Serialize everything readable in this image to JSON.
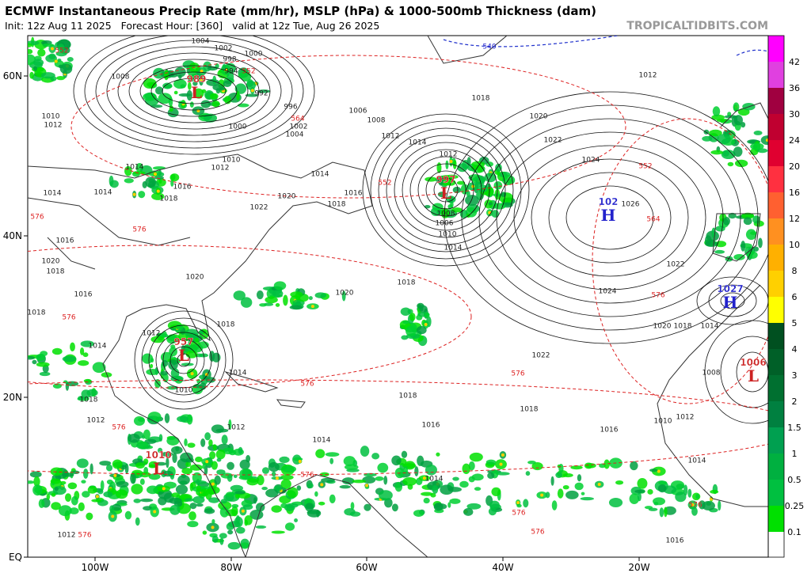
{
  "header": {
    "title": "ECMWF Instantaneous Precip Rate (mm/hr), MSLP (hPa) & 1000-500mb Thickness (dam)",
    "subtitle": "Init: 12z Aug 11 2025   Forecast Hour: [360]   valid at 12z Tue, Aug 26 2025",
    "site": "TROPICALTIDBITS.COM"
  },
  "axes": {
    "lat": [
      "60N",
      "40N",
      "20N",
      "EQ"
    ],
    "lon": [
      "100W",
      "80W",
      "60W",
      "40W",
      "20W"
    ]
  },
  "colorbar": {
    "labels": [
      "42",
      "36",
      "30",
      "24",
      "20",
      "16",
      "12",
      "10",
      "8",
      "6",
      "5",
      "4",
      "3",
      "2",
      "1.5",
      "1",
      "0.5",
      "0.25",
      "0.1"
    ]
  },
  "centers": [
    {
      "pressure": "989",
      "symbol": "L"
    },
    {
      "pressure": "997",
      "symbol": "L"
    },
    {
      "pressure": "102",
      "symbol": "H"
    },
    {
      "pressure": "1027",
      "symbol": "H"
    },
    {
      "pressure": "1006",
      "symbol": "L"
    },
    {
      "pressure": "957",
      "symbol": "L"
    },
    {
      "pressure": "1010",
      "symbol": "L"
    }
  ],
  "isobar_labels": [
    "1004",
    "1002",
    "1000",
    "998",
    "994",
    "992",
    "996",
    "1002",
    "1004",
    "1000",
    "1006",
    "1008",
    "1008",
    "1010",
    "1012",
    "1012",
    "1014",
    "1012",
    "1018",
    "1020",
    "1022",
    "1024",
    "1026",
    "1022",
    "1024",
    "1020",
    "1018",
    "1014",
    "1022",
    "1018",
    "1018",
    "1016",
    "1016",
    "1014",
    "1014",
    "1012",
    "1012",
    "1016",
    "1010",
    "1012",
    "1014",
    "1016",
    "1018",
    "1014",
    "1016",
    "1018",
    "1020",
    "1022",
    "1020",
    "1020",
    "1018",
    "1014",
    "1010",
    "1008",
    "1006",
    "1018",
    "1014",
    "1010",
    "1012",
    "1014",
    "1014",
    "1016",
    "1020",
    "1018",
    "1016",
    "1018",
    "1014",
    "1012",
    "1018",
    "1012",
    "1010",
    "1014",
    "1008",
    "1012"
  ],
  "thickness_labels": [
    "552",
    "552",
    "564",
    "552",
    "552",
    "564",
    "576",
    "576",
    "576",
    "576",
    "576",
    "576",
    "576",
    "576",
    "576",
    "576",
    "576",
    "576"
  ],
  "blue_labels": [
    "540"
  ]
}
